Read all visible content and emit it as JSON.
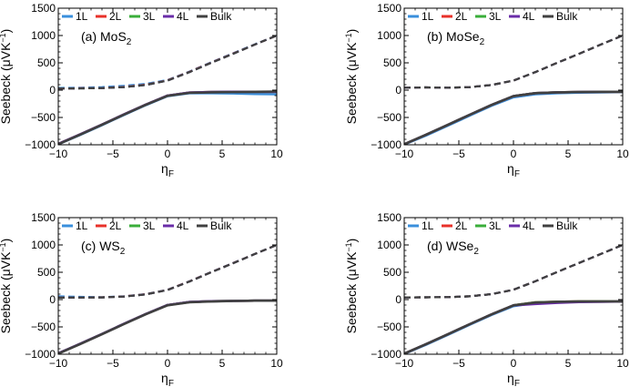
{
  "chart_data": [
    {
      "type": "line",
      "panel_label": "(a) MoS",
      "panel_sub": "2",
      "xlabel": "η",
      "xlabel_sub": "F",
      "ylabel": "Seebeck (μVK",
      "ylabel_sup": "−1",
      "ylabel_close": ")",
      "xlim": [
        -10,
        10
      ],
      "ylim": [
        -1000,
        1500
      ],
      "xticks": [
        -10,
        -5,
        0,
        5,
        10
      ],
      "xtick_labels": [
        "−10",
        "−5",
        "0",
        "5",
        "10"
      ],
      "yticks": [
        -1000,
        -500,
        0,
        500,
        1000,
        1500
      ],
      "ytick_labels": [
        "−1000",
        "−500",
        "0",
        "500",
        "1000",
        "1500"
      ],
      "legend": [
        "1L",
        "2L",
        "3L",
        "4L",
        "Bulk"
      ],
      "colors": [
        "#3a8fdc",
        "#e8312a",
        "#3aae3a",
        "#6a2da8",
        "#404040"
      ],
      "x": [
        -10,
        -8,
        -6,
        -4,
        -2,
        0,
        2,
        4,
        6,
        8,
        10
      ],
      "series": [
        {
          "name": "1L n-type",
          "values": [
            -990,
            -820,
            -640,
            -455,
            -275,
            -110,
            -55,
            -55,
            -60,
            -70,
            -75
          ]
        },
        {
          "name": "1L p-type",
          "values": [
            40,
            45,
            55,
            80,
            115,
            185,
            340,
            510,
            675,
            840,
            1000
          ]
        },
        {
          "name": "2L n-type",
          "values": [
            -985,
            -810,
            -630,
            -445,
            -265,
            -100,
            -45,
            -35,
            -30,
            -30,
            -30
          ]
        },
        {
          "name": "2L p-type",
          "values": [
            30,
            35,
            40,
            60,
            100,
            180,
            335,
            505,
            670,
            835,
            1000
          ]
        },
        {
          "name": "3L n-type",
          "values": [
            -985,
            -810,
            -630,
            -445,
            -265,
            -100,
            -45,
            -35,
            -30,
            -30,
            -30
          ]
        },
        {
          "name": "3L p-type",
          "values": [
            30,
            32,
            38,
            55,
            95,
            175,
            330,
            500,
            665,
            835,
            1000
          ]
        },
        {
          "name": "4L n-type",
          "values": [
            -985,
            -810,
            -630,
            -445,
            -265,
            -100,
            -45,
            -35,
            -30,
            -30,
            -30
          ]
        },
        {
          "name": "4L p-type",
          "values": [
            30,
            32,
            38,
            55,
            95,
            175,
            330,
            500,
            665,
            835,
            1000
          ]
        },
        {
          "name": "Bulk n-type",
          "values": [
            -990,
            -815,
            -635,
            -450,
            -270,
            -105,
            -50,
            -40,
            -35,
            -30,
            -25
          ]
        },
        {
          "name": "Bulk p-type",
          "values": [
            30,
            32,
            38,
            55,
            95,
            175,
            330,
            500,
            665,
            835,
            1000
          ]
        }
      ]
    },
    {
      "type": "line",
      "panel_label": "(b) MoSe",
      "panel_sub": "2",
      "xlabel": "η",
      "xlabel_sub": "F",
      "ylabel": "Seebeck (μVK",
      "ylabel_sup": "−1",
      "ylabel_close": ")",
      "xlim": [
        -10,
        10
      ],
      "ylim": [
        -1000,
        1500
      ],
      "xticks": [
        -10,
        -5,
        0,
        5,
        10
      ],
      "xtick_labels": [
        "−10",
        "−5",
        "0",
        "5",
        "10"
      ],
      "yticks": [
        -1000,
        -500,
        0,
        500,
        1000,
        1500
      ],
      "ytick_labels": [
        "−1000",
        "−500",
        "0",
        "500",
        "1000",
        "1500"
      ],
      "legend": [
        "1L",
        "2L",
        "3L",
        "4L",
        "Bulk"
      ],
      "colors": [
        "#3a8fdc",
        "#e8312a",
        "#3aae3a",
        "#6a2da8",
        "#404040"
      ],
      "x": [
        -10,
        -8,
        -6,
        -4,
        -2,
        0,
        2,
        4,
        6,
        8,
        10
      ],
      "series": [
        {
          "name": "1L n-type",
          "values": [
            -995,
            -830,
            -650,
            -465,
            -285,
            -130,
            -75,
            -55,
            -45,
            -40,
            -35
          ]
        },
        {
          "name": "1L p-type",
          "values": [
            45,
            50,
            45,
            55,
            95,
            175,
            330,
            500,
            665,
            835,
            1000
          ]
        },
        {
          "name": "2L n-type",
          "values": [
            -990,
            -815,
            -635,
            -450,
            -270,
            -110,
            -55,
            -40,
            -35,
            -30,
            -30
          ]
        },
        {
          "name": "2L p-type",
          "values": [
            45,
            50,
            45,
            55,
            95,
            175,
            330,
            500,
            665,
            835,
            1000
          ]
        },
        {
          "name": "3L n-type",
          "values": [
            -990,
            -815,
            -635,
            -450,
            -270,
            -110,
            -55,
            -40,
            -35,
            -30,
            -30
          ]
        },
        {
          "name": "3L p-type",
          "values": [
            45,
            50,
            45,
            55,
            95,
            175,
            330,
            500,
            665,
            835,
            1000
          ]
        },
        {
          "name": "4L n-type",
          "values": [
            -990,
            -815,
            -635,
            -450,
            -270,
            -110,
            -55,
            -40,
            -35,
            -30,
            -30
          ]
        },
        {
          "name": "4L p-type",
          "values": [
            45,
            50,
            45,
            55,
            95,
            175,
            330,
            500,
            665,
            835,
            1000
          ]
        },
        {
          "name": "Bulk n-type",
          "values": [
            -990,
            -815,
            -635,
            -450,
            -270,
            -110,
            -55,
            -40,
            -35,
            -30,
            -30
          ]
        },
        {
          "name": "Bulk p-type",
          "values": [
            45,
            50,
            45,
            55,
            95,
            175,
            330,
            500,
            665,
            835,
            1000
          ]
        }
      ]
    },
    {
      "type": "line",
      "panel_label": "(c) WS",
      "panel_sub": "2",
      "xlabel": "η",
      "xlabel_sub": "F",
      "ylabel": "Seebeck (μVK",
      "ylabel_sup": "−1",
      "ylabel_close": ")",
      "xlim": [
        -10,
        10
      ],
      "ylim": [
        -1000,
        1500
      ],
      "xticks": [
        -10,
        -5,
        0,
        5,
        10
      ],
      "xtick_labels": [
        "−10",
        "−5",
        "0",
        "5",
        "10"
      ],
      "yticks": [
        -1000,
        -500,
        0,
        500,
        1000,
        1500
      ],
      "ytick_labels": [
        "−1000",
        "−500",
        "0",
        "500",
        "1000",
        "1500"
      ],
      "legend": [
        "1L",
        "2L",
        "3L",
        "4L",
        "Bulk"
      ],
      "colors": [
        "#3a8fdc",
        "#e8312a",
        "#3aae3a",
        "#6a2da8",
        "#404040"
      ],
      "x": [
        -10,
        -8,
        -6,
        -4,
        -2,
        0,
        2,
        4,
        6,
        8,
        10
      ],
      "series": [
        {
          "name": "1L n-type",
          "values": [
            -985,
            -810,
            -630,
            -445,
            -265,
            -100,
            -45,
            -30,
            -25,
            -20,
            -20
          ]
        },
        {
          "name": "1L p-type",
          "values": [
            60,
            50,
            45,
            60,
            100,
            180,
            335,
            505,
            670,
            835,
            1000
          ]
        },
        {
          "name": "2L n-type",
          "values": [
            -985,
            -810,
            -630,
            -445,
            -265,
            -100,
            -45,
            -30,
            -25,
            -20,
            -20
          ]
        },
        {
          "name": "2L p-type",
          "values": [
            40,
            40,
            42,
            58,
            98,
            178,
            333,
            503,
            668,
            835,
            1000
          ]
        },
        {
          "name": "3L n-type",
          "values": [
            -985,
            -810,
            -630,
            -445,
            -265,
            -100,
            -45,
            -30,
            -25,
            -20,
            -20
          ]
        },
        {
          "name": "3L p-type",
          "values": [
            35,
            38,
            40,
            55,
            95,
            175,
            330,
            500,
            665,
            835,
            1000
          ]
        },
        {
          "name": "4L n-type",
          "values": [
            -985,
            -810,
            -630,
            -445,
            -265,
            -100,
            -45,
            -30,
            -25,
            -20,
            -20
          ]
        },
        {
          "name": "4L p-type",
          "values": [
            35,
            38,
            40,
            55,
            95,
            175,
            330,
            500,
            665,
            835,
            1000
          ]
        },
        {
          "name": "Bulk n-type",
          "values": [
            -990,
            -815,
            -635,
            -450,
            -270,
            -105,
            -50,
            -35,
            -25,
            -20,
            -20
          ]
        },
        {
          "name": "Bulk p-type",
          "values": [
            35,
            38,
            40,
            55,
            95,
            175,
            330,
            500,
            665,
            835,
            1000
          ]
        }
      ]
    },
    {
      "type": "line",
      "panel_label": "(d) WSe",
      "panel_sub": "2",
      "xlabel": "η",
      "xlabel_sub": "F",
      "ylabel": "Seebeck (μVK",
      "ylabel_sup": "−1",
      "ylabel_close": ")",
      "xlim": [
        -10,
        10
      ],
      "ylim": [
        -1000,
        1500
      ],
      "xticks": [
        -10,
        -5,
        0,
        5,
        10
      ],
      "xtick_labels": [
        "−10",
        "−5",
        "0",
        "5",
        "10"
      ],
      "yticks": [
        -1000,
        -500,
        0,
        500,
        1000,
        1500
      ],
      "ytick_labels": [
        "−1000",
        "−500",
        "0",
        "500",
        "1000",
        "1500"
      ],
      "legend": [
        "1L",
        "2L",
        "3L",
        "4L",
        "Bulk"
      ],
      "colors": [
        "#3a8fdc",
        "#e8312a",
        "#3aae3a",
        "#6a2da8",
        "#404040"
      ],
      "x": [
        -10,
        -8,
        -6,
        -4,
        -2,
        0,
        2,
        4,
        6,
        8,
        10
      ],
      "series": [
        {
          "name": "1L n-type",
          "values": [
            -995,
            -825,
            -645,
            -460,
            -280,
            -120,
            -60,
            -45,
            -40,
            -35,
            -35
          ]
        },
        {
          "name": "1L p-type",
          "values": [
            40,
            42,
            45,
            60,
            100,
            180,
            335,
            505,
            670,
            835,
            1000
          ]
        },
        {
          "name": "2L n-type",
          "values": [
            -990,
            -815,
            -635,
            -450,
            -270,
            -105,
            -50,
            -40,
            -35,
            -35,
            -35
          ]
        },
        {
          "name": "2L p-type",
          "values": [
            40,
            42,
            45,
            60,
            100,
            180,
            335,
            505,
            670,
            835,
            1000
          ]
        },
        {
          "name": "3L n-type",
          "values": [
            -990,
            -815,
            -635,
            -450,
            -270,
            -105,
            -50,
            -40,
            -35,
            -35,
            -35
          ]
        },
        {
          "name": "3L p-type",
          "values": [
            40,
            42,
            45,
            60,
            100,
            180,
            335,
            505,
            670,
            835,
            1000
          ]
        },
        {
          "name": "4L n-type",
          "values": [
            -990,
            -815,
            -635,
            -450,
            -270,
            -105,
            -80,
            -60,
            -45,
            -40,
            -35
          ]
        },
        {
          "name": "4L p-type",
          "values": [
            40,
            42,
            45,
            60,
            100,
            180,
            335,
            505,
            670,
            835,
            1000
          ]
        },
        {
          "name": "Bulk n-type",
          "values": [
            -990,
            -815,
            -635,
            -450,
            -270,
            -105,
            -55,
            -40,
            -35,
            -35,
            -35
          ]
        },
        {
          "name": "Bulk p-type",
          "values": [
            40,
            42,
            45,
            60,
            100,
            180,
            335,
            505,
            670,
            835,
            1000
          ]
        }
      ]
    }
  ]
}
